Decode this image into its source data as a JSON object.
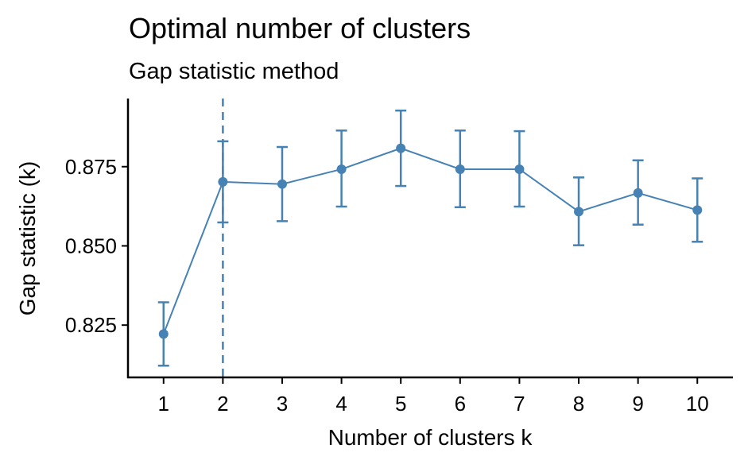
{
  "chart_data": {
    "type": "line",
    "title": "Optimal number of clusters",
    "subtitle": "Gap statistic method",
    "xlabel": "Number of clusters k",
    "ylabel": "Gap statistic (k)",
    "x": [
      1,
      2,
      3,
      4,
      5,
      6,
      7,
      8,
      9,
      10
    ],
    "series": [
      {
        "values": [
          0.8222,
          0.8702,
          0.8695,
          0.8742,
          0.8808,
          0.8742,
          0.8742,
          0.8608,
          0.8667,
          0.8613
        ],
        "error_low": [
          0.8122,
          0.8574,
          0.8578,
          0.8624,
          0.8689,
          0.8622,
          0.8624,
          0.8502,
          0.8567,
          0.8513
        ],
        "error_high": [
          0.8322,
          0.883,
          0.8812,
          0.8864,
          0.8927,
          0.8864,
          0.8862,
          0.8716,
          0.877,
          0.8713
        ]
      }
    ],
    "xticks": [
      "1",
      "2",
      "3",
      "4",
      "5",
      "6",
      "7",
      "8",
      "9",
      "10"
    ],
    "yticks": [
      0.825,
      0.85,
      0.875
    ],
    "ytick_labels": [
      "0.825",
      "0.850",
      "0.875"
    ],
    "xlim": [
      0.4,
      10.6
    ],
    "ylim": [
      0.8085,
      0.8965
    ],
    "optimal_k": 2,
    "grid": false,
    "legend": "none",
    "color": "#4682B4"
  }
}
